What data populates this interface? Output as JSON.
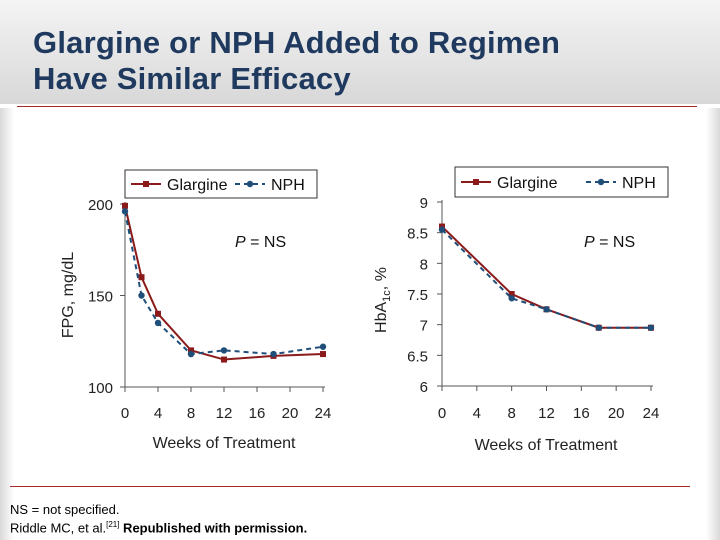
{
  "title": {
    "line1": "Glargine or NPH Added to Regimen",
    "line2": "Have Similar Efficacy"
  },
  "colors": {
    "title": "#1f3a5e",
    "glargine": "#8b1a1a",
    "nph": "#1f4e79",
    "rule": "#a52a2a"
  },
  "chart_data": [
    {
      "type": "line",
      "ylabel": "FPG, mg/dL",
      "xlabel": "Weeks of Treatment",
      "ylim": [
        100,
        200
      ],
      "xlim": [
        0,
        24
      ],
      "yticks": [
        "100",
        "150",
        "200"
      ],
      "ytick_values": [
        100,
        150,
        200
      ],
      "xticks": [
        "0",
        "4",
        "8",
        "12",
        "16",
        "20",
        "24"
      ],
      "xtick_values": [
        0,
        4,
        8,
        12,
        16,
        20,
        24
      ],
      "annotation": {
        "p": "P",
        "rest": " = NS"
      },
      "legend": [
        "Glargine",
        "NPH"
      ],
      "series": [
        {
          "name": "Glargine",
          "x": [
            0,
            2,
            4,
            8,
            12,
            18,
            24
          ],
          "y": [
            199,
            160,
            140,
            120,
            115,
            117,
            118
          ]
        },
        {
          "name": "NPH",
          "x": [
            0,
            2,
            4,
            8,
            12,
            18,
            24
          ],
          "y": [
            196,
            150,
            135,
            118,
            120,
            118,
            122
          ]
        }
      ]
    },
    {
      "type": "line",
      "ylabel_main": "HbA",
      "ylabel_sub": "1c",
      "ylabel_rest": ", %",
      "xlabel": "Weeks of Treatment",
      "ylim": [
        6,
        9
      ],
      "xlim": [
        0,
        24
      ],
      "yticks": [
        "6",
        "6.5",
        "7",
        "7.5",
        "8",
        "8.5",
        "9"
      ],
      "ytick_values": [
        6,
        6.5,
        7,
        7.5,
        8,
        8.5,
        9
      ],
      "xticks": [
        "0",
        "4",
        "8",
        "12",
        "16",
        "20",
        "24"
      ],
      "xtick_values": [
        0,
        4,
        8,
        12,
        16,
        20,
        24
      ],
      "annotation": {
        "p": "P",
        "rest": " = NS"
      },
      "legend": [
        "Glargine",
        "NPH"
      ],
      "series": [
        {
          "name": "Glargine",
          "x": [
            0,
            8,
            12,
            18,
            24
          ],
          "y": [
            8.6,
            7.5,
            7.25,
            6.95,
            6.95
          ]
        },
        {
          "name": "NPH",
          "x": [
            0,
            8,
            12,
            18,
            24
          ],
          "y": [
            8.55,
            7.43,
            7.25,
            6.95,
            6.95
          ]
        }
      ]
    }
  ],
  "footnotes": {
    "ns": "NS = not specified.",
    "citation_before": "Riddle MC, et al.",
    "citation_ref": "[21]",
    "citation_after": " Republished  with permission."
  }
}
